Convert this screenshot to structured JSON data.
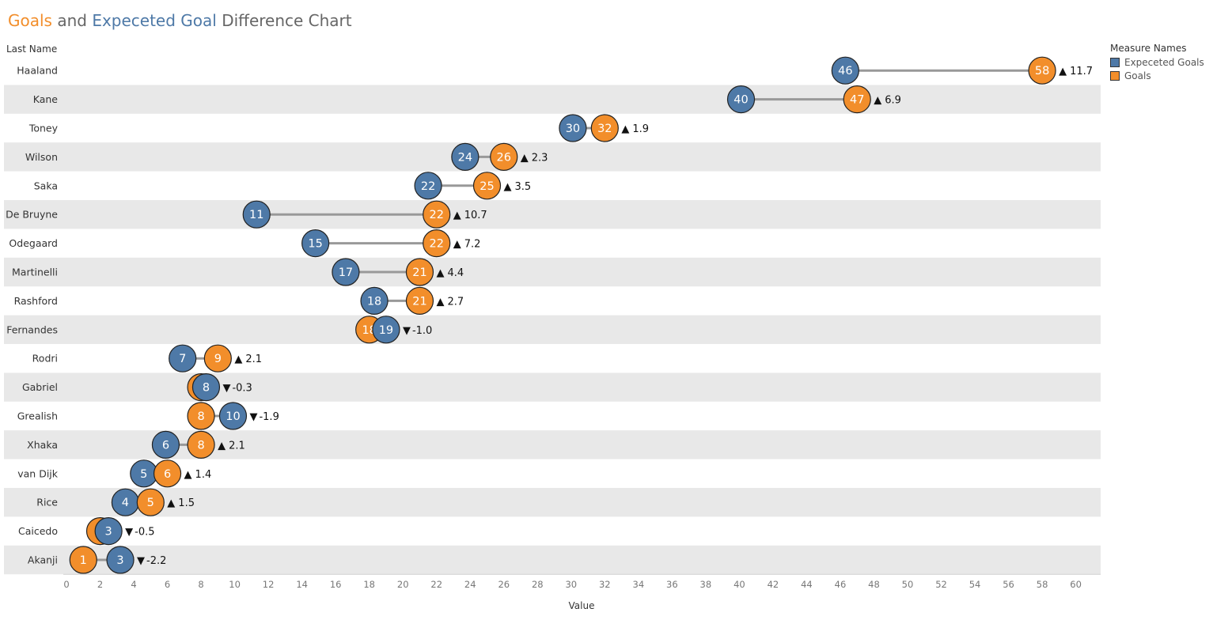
{
  "title": {
    "part1": "Goals",
    "part2": " and ",
    "part3": "Expeceted Goal",
    "part4": " Difference Chart"
  },
  "legend": {
    "title": "Measure Names",
    "items": [
      {
        "label": "Expeceted Goals",
        "color": "#4e79a7"
      },
      {
        "label": "Goals",
        "color": "#f28e2b"
      }
    ]
  },
  "chart_data": {
    "type": "dumbbell",
    "row_header": "Last Name",
    "xlabel": "Value",
    "xlim": [
      0,
      62
    ],
    "xticks": [
      0,
      2,
      4,
      6,
      8,
      10,
      12,
      14,
      16,
      18,
      20,
      22,
      24,
      26,
      28,
      30,
      32,
      34,
      36,
      38,
      40,
      42,
      44,
      46,
      48,
      50,
      52,
      54,
      56,
      58,
      60
    ],
    "colors": {
      "xg": "#4e79a7",
      "goals": "#f28e2b"
    },
    "rows": [
      {
        "name": "Haaland",
        "xg": 46.3,
        "xg_label": "46",
        "goals": 58,
        "goals_label": "58",
        "diff_label": "11.7",
        "up": true
      },
      {
        "name": "Kane",
        "xg": 40.1,
        "xg_label": "40",
        "goals": 47,
        "goals_label": "47",
        "diff_label": "6.9",
        "up": true
      },
      {
        "name": "Toney",
        "xg": 30.1,
        "xg_label": "30",
        "goals": 32,
        "goals_label": "32",
        "diff_label": "1.9",
        "up": true
      },
      {
        "name": "Wilson",
        "xg": 23.7,
        "xg_label": "24",
        "goals": 26,
        "goals_label": "26",
        "diff_label": "2.3",
        "up": true
      },
      {
        "name": "Saka",
        "xg": 21.5,
        "xg_label": "22",
        "goals": 25,
        "goals_label": "25",
        "diff_label": "3.5",
        "up": true
      },
      {
        "name": "De Bruyne",
        "xg": 11.3,
        "xg_label": "11",
        "goals": 22,
        "goals_label": "22",
        "diff_label": "10.7",
        "up": true
      },
      {
        "name": "Odegaard",
        "xg": 14.8,
        "xg_label": "15",
        "goals": 22,
        "goals_label": "22",
        "diff_label": "7.2",
        "up": true
      },
      {
        "name": "Martinelli",
        "xg": 16.6,
        "xg_label": "17",
        "goals": 21,
        "goals_label": "21",
        "diff_label": "4.4",
        "up": true
      },
      {
        "name": "Rashford",
        "xg": 18.3,
        "xg_label": "18",
        "goals": 21,
        "goals_label": "21",
        "diff_label": "2.7",
        "up": true
      },
      {
        "name": "Fernandes",
        "xg": 19.0,
        "xg_label": "19",
        "goals": 18,
        "goals_label": "18",
        "diff_label": "-1.0",
        "up": false
      },
      {
        "name": "Rodri",
        "xg": 6.9,
        "xg_label": "7",
        "goals": 9,
        "goals_label": "9",
        "diff_label": "2.1",
        "up": true
      },
      {
        "name": "Gabriel",
        "xg": 8.3,
        "xg_label": "8",
        "goals": 8,
        "goals_label": "8",
        "diff_label": "-0.3",
        "up": false
      },
      {
        "name": "Grealish",
        "xg": 9.9,
        "xg_label": "10",
        "goals": 8,
        "goals_label": "8",
        "diff_label": "-1.9",
        "up": false
      },
      {
        "name": "Xhaka",
        "xg": 5.9,
        "xg_label": "6",
        "goals": 8,
        "goals_label": "8",
        "diff_label": "2.1",
        "up": true
      },
      {
        "name": "van Dijk",
        "xg": 4.6,
        "xg_label": "5",
        "goals": 6,
        "goals_label": "6",
        "diff_label": "1.4",
        "up": true
      },
      {
        "name": "Rice",
        "xg": 3.5,
        "xg_label": "4",
        "goals": 5,
        "goals_label": "5",
        "diff_label": "1.5",
        "up": true
      },
      {
        "name": "Caicedo",
        "xg": 2.5,
        "xg_label": "3",
        "goals": 2,
        "goals_label": "2",
        "diff_label": "-0.5",
        "up": false
      },
      {
        "name": "Akanji",
        "xg": 3.2,
        "xg_label": "3",
        "goals": 1,
        "goals_label": "1",
        "diff_label": "-2.2",
        "up": false
      }
    ]
  }
}
